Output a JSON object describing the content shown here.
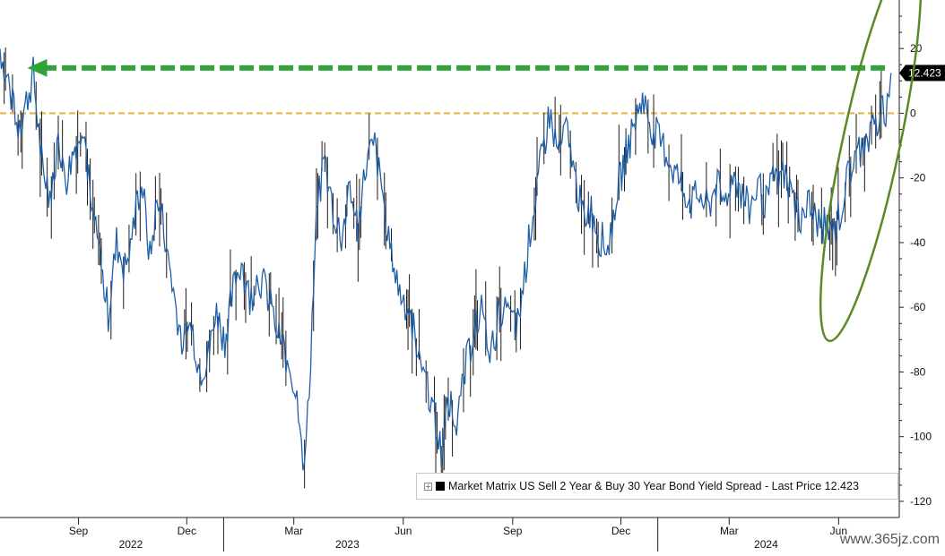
{
  "chart_data": {
    "type": "line",
    "title": "",
    "legend": {
      "label": "Market Matrix US Sell 2 Year & Buy 30 Year Bond Yield Spread - Last Price 12.423",
      "placement": "bottom-right"
    },
    "last_price_label": "12.423",
    "y_ticks": [
      "20",
      "0",
      "-20",
      "-40",
      "-60",
      "-80",
      "-100",
      "-120"
    ],
    "ylim": [
      -125,
      35
    ],
    "x_ticks": [
      {
        "label": "Sep",
        "date": "2022-09-01"
      },
      {
        "label": "Dec",
        "date": "2022-12-01"
      },
      {
        "label": "Mar",
        "date": "2023-03-01"
      },
      {
        "label": "Jun",
        "date": "2023-06-01"
      },
      {
        "label": "Sep",
        "date": "2023-09-01"
      },
      {
        "label": "Dec",
        "date": "2023-12-01"
      },
      {
        "label": "Mar",
        "date": "2024-03-01"
      },
      {
        "label": "Jun",
        "date": "2024-06-01"
      }
    ],
    "year_labels": [
      {
        "label": "2022",
        "date": "2022-10-15"
      },
      {
        "label": "2023",
        "date": "2023-04-15"
      },
      {
        "label": "2024",
        "date": "2024-04-01"
      }
    ],
    "xlim": [
      "2022-06-27",
      "2024-07-22"
    ],
    "zero_line": {
      "value": 0,
      "color": "#e3b13a",
      "style": "dashed"
    },
    "arrow": {
      "color": "#2fa33a",
      "from_date": "2024-07-10",
      "to_date": "2022-07-20",
      "value": 14
    },
    "highlight_ellipse": {
      "color": "#5a8a25",
      "center_date": "2024-06-28",
      "center_value": -10,
      "value_span": 65
    },
    "series": [
      {
        "color": "#1f5fa8",
        "points": [
          [
            "2022-06-27",
            20
          ],
          [
            "2022-07-04",
            10
          ],
          [
            "2022-07-11",
            -5
          ],
          [
            "2022-07-18",
            2
          ],
          [
            "2022-07-25",
            12
          ],
          [
            "2022-08-01",
            -15
          ],
          [
            "2022-08-08",
            -25
          ],
          [
            "2022-08-15",
            -8
          ],
          [
            "2022-08-22",
            -20
          ],
          [
            "2022-08-29",
            -10
          ],
          [
            "2022-09-05",
            -2
          ],
          [
            "2022-09-12",
            -30
          ],
          [
            "2022-09-19",
            -45
          ],
          [
            "2022-09-26",
            -62
          ],
          [
            "2022-10-03",
            -40
          ],
          [
            "2022-10-10",
            -48
          ],
          [
            "2022-10-17",
            -35
          ],
          [
            "2022-10-24",
            -20
          ],
          [
            "2022-10-31",
            -45
          ],
          [
            "2022-11-07",
            -25
          ],
          [
            "2022-11-14",
            -40
          ],
          [
            "2022-11-21",
            -58
          ],
          [
            "2022-11-28",
            -72
          ],
          [
            "2022-12-05",
            -65
          ],
          [
            "2022-12-12",
            -80
          ],
          [
            "2022-12-19",
            -75
          ],
          [
            "2022-12-26",
            -62
          ],
          [
            "2023-01-02",
            -70
          ],
          [
            "2023-01-09",
            -55
          ],
          [
            "2023-01-16",
            -45
          ],
          [
            "2023-01-23",
            -58
          ],
          [
            "2023-01-30",
            -50
          ],
          [
            "2023-02-06",
            -55
          ],
          [
            "2023-02-13",
            -65
          ],
          [
            "2023-02-20",
            -72
          ],
          [
            "2023-02-27",
            -80
          ],
          [
            "2023-03-06",
            -92
          ],
          [
            "2023-03-10",
            -112
          ],
          [
            "2023-03-14",
            -85
          ],
          [
            "2023-03-20",
            -30
          ],
          [
            "2023-03-27",
            -15
          ],
          [
            "2023-04-03",
            -30
          ],
          [
            "2023-04-10",
            -38
          ],
          [
            "2023-04-17",
            -25
          ],
          [
            "2023-04-24",
            -35
          ],
          [
            "2023-05-01",
            -15
          ],
          [
            "2023-05-08",
            -10
          ],
          [
            "2023-05-15",
            -25
          ],
          [
            "2023-05-22",
            -45
          ],
          [
            "2023-05-29",
            -55
          ],
          [
            "2023-06-05",
            -60
          ],
          [
            "2023-06-12",
            -70
          ],
          [
            "2023-06-19",
            -80
          ],
          [
            "2023-06-26",
            -92
          ],
          [
            "2023-07-03",
            -105
          ],
          [
            "2023-07-10",
            -88
          ],
          [
            "2023-07-17",
            -95
          ],
          [
            "2023-07-24",
            -78
          ],
          [
            "2023-07-31",
            -65
          ],
          [
            "2023-08-07",
            -60
          ],
          [
            "2023-08-14",
            -75
          ],
          [
            "2023-08-21",
            -60
          ],
          [
            "2023-08-28",
            -62
          ],
          [
            "2023-09-04",
            -68
          ],
          [
            "2023-09-11",
            -50
          ],
          [
            "2023-09-18",
            -30
          ],
          [
            "2023-09-25",
            -15
          ],
          [
            "2023-10-02",
            0
          ],
          [
            "2023-10-09",
            -12
          ],
          [
            "2023-10-16",
            -5
          ],
          [
            "2023-10-23",
            -20
          ],
          [
            "2023-10-30",
            -32
          ],
          [
            "2023-11-06",
            -30
          ],
          [
            "2023-11-13",
            -38
          ],
          [
            "2023-11-20",
            -42
          ],
          [
            "2023-11-27",
            -25
          ],
          [
            "2023-12-04",
            -15
          ],
          [
            "2023-12-11",
            -5
          ],
          [
            "2023-12-18",
            5
          ],
          [
            "2023-12-25",
            -2
          ],
          [
            "2024-01-01",
            -8
          ],
          [
            "2024-01-08",
            -12
          ],
          [
            "2024-01-15",
            -18
          ],
          [
            "2024-01-22",
            -22
          ],
          [
            "2024-01-29",
            -28
          ],
          [
            "2024-02-05",
            -25
          ],
          [
            "2024-02-12",
            -30
          ],
          [
            "2024-02-19",
            -22
          ],
          [
            "2024-02-26",
            -28
          ],
          [
            "2024-03-04",
            -18
          ],
          [
            "2024-03-11",
            -25
          ],
          [
            "2024-03-18",
            -30
          ],
          [
            "2024-03-25",
            -22
          ],
          [
            "2024-04-01",
            -28
          ],
          [
            "2024-04-08",
            -20
          ],
          [
            "2024-04-15",
            -18
          ],
          [
            "2024-04-22",
            -25
          ],
          [
            "2024-04-29",
            -32
          ],
          [
            "2024-05-06",
            -28
          ],
          [
            "2024-05-13",
            -33
          ],
          [
            "2024-05-20",
            -35
          ],
          [
            "2024-05-27",
            -38
          ],
          [
            "2024-06-03",
            -30
          ],
          [
            "2024-06-10",
            -18
          ],
          [
            "2024-06-17",
            -12
          ],
          [
            "2024-06-24",
            -8
          ],
          [
            "2024-07-01",
            -5
          ],
          [
            "2024-07-08",
            0
          ],
          [
            "2024-07-12",
            2
          ],
          [
            "2024-07-15",
            12.423
          ]
        ]
      }
    ]
  },
  "watermark": "www.365jz.com"
}
